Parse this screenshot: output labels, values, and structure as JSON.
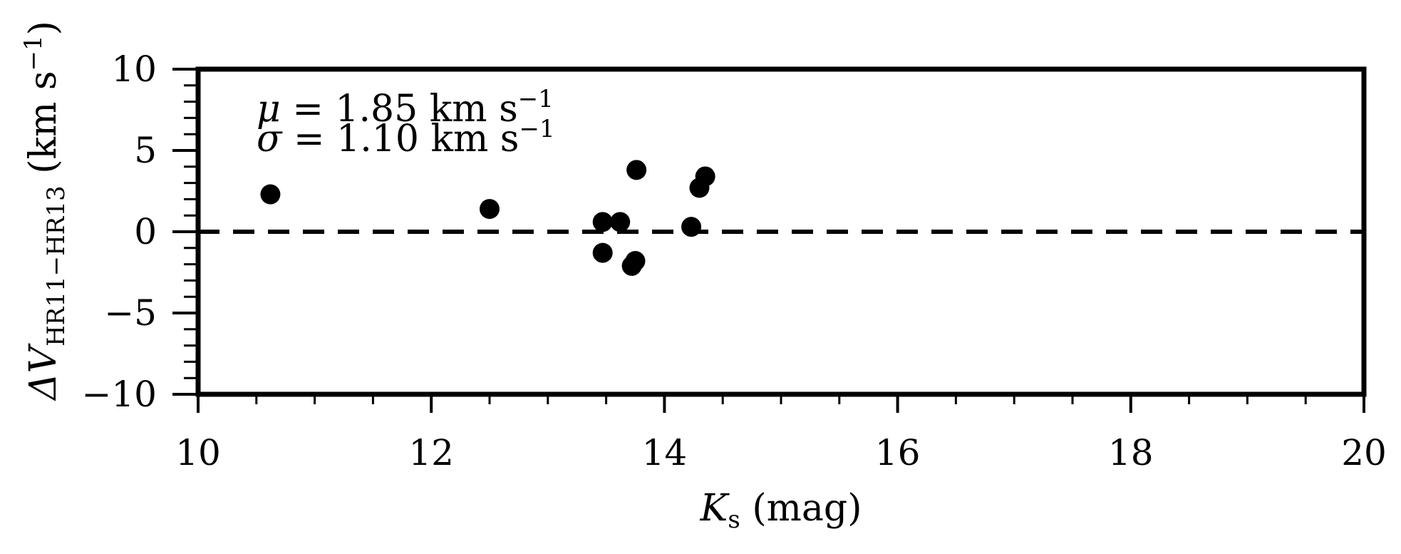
{
  "chart_data": {
    "type": "scatter",
    "xlabel": {
      "main": "K",
      "sub": "s",
      "rest": " (mag)"
    },
    "ylabel": {
      "prefix": "ΔV",
      "sub": "HR11−HR13",
      "rest": " (km s",
      "sup": "−1",
      "close": ")"
    },
    "xlim": [
      10,
      20
    ],
    "ylim": [
      -10,
      10
    ],
    "xticks": [
      10,
      12,
      14,
      16,
      18,
      20
    ],
    "xtick_labels": [
      "10",
      "12",
      "14",
      "16",
      "18",
      "20"
    ],
    "yticks": [
      -10,
      -5,
      0,
      5,
      10
    ],
    "ytick_labels": [
      "−10",
      "−5",
      "0",
      "5",
      "10"
    ],
    "x_minor_step": 0.5,
    "y_minor_step": 1,
    "grid": false,
    "reference_line": {
      "y": 0,
      "style": "dashed"
    },
    "annotations": [
      {
        "symbol": "μ",
        "text": " = 1.85 km s",
        "sup": "−1"
      },
      {
        "symbol": "σ",
        "text": " = 1.10 km s",
        "sup": "−1"
      }
    ],
    "series": [
      {
        "x": [
          10.62,
          12.5,
          13.47,
          13.62,
          13.47,
          13.72,
          13.75,
          13.76,
          14.23,
          14.3,
          14.35
        ],
        "y": [
          2.3,
          1.4,
          0.6,
          0.6,
          -1.3,
          -2.1,
          -1.8,
          3.8,
          0.3,
          2.7,
          3.4
        ]
      }
    ],
    "colors": {
      "marker": "#000000",
      "axes": "#000000",
      "background": "#ffffff"
    }
  }
}
